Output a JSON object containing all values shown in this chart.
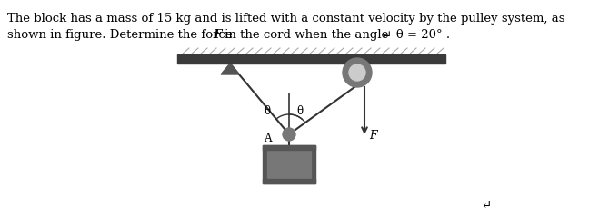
{
  "text_line1": "The block has a mass of 15 kg and is lifted with a constant velocity by the pulley system, as",
  "text_line2_pre": "shown in figure. Determine the force ",
  "text_bold_F": "F",
  "text_line2_post": " in the cord when the angle  θ = 20° .",
  "return_symbol": "↵",
  "fig_width": 6.59,
  "fig_height": 2.38,
  "bg_color": "#ffffff",
  "ceiling_dark": "#3a3a3a",
  "ceiling_light": "#aaaaaa",
  "rope_color": "#333333",
  "pulley_outer": "#777777",
  "pulley_inner": "#cccccc",
  "pin_color": "#555555",
  "node_color": "#777777",
  "block_dark": "#555555",
  "block_mid": "#777777",
  "block_light": "#aaaaaa",
  "font_size": 9.5
}
